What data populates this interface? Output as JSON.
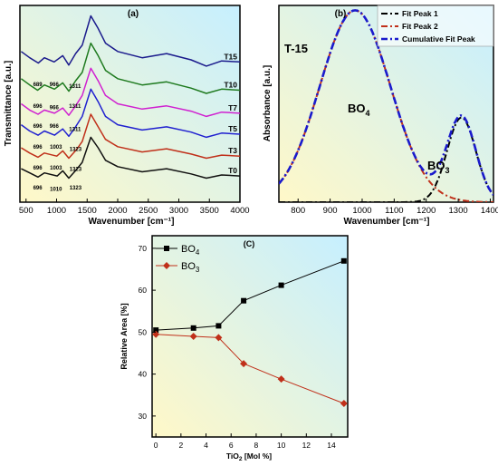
{
  "panels": {
    "a": {
      "label": "(a)"
    },
    "b": {
      "label": "(b)",
      "sample": "T-15",
      "bo4_main": "BO",
      "bo4_sub": "4",
      "bo3_main": "BO",
      "bo3_sub": "3"
    },
    "c": {
      "label": "(C)"
    }
  },
  "chart_data": [
    {
      "type": "line",
      "panel": "a",
      "xlabel": "Wavenumber [cm⁻¹]",
      "ylabel": "Transmittance [a.u.]",
      "xlim": [
        400,
        4000
      ],
      "xticks": [
        500,
        1000,
        1500,
        2000,
        2500,
        3000,
        3500,
        4000
      ],
      "y_tick_labels": false,
      "background": [
        "#fff8c8",
        "#c6efff"
      ],
      "series": [
        {
          "name": "T15",
          "color": "#1a1a8c",
          "offset": 6.3,
          "x": [
            420,
            560,
            700,
            800,
            960,
            1100,
            1200,
            1311,
            1420,
            1560,
            1680,
            1800,
            2000,
            2400,
            2800,
            3200,
            3450,
            3700,
            4000
          ],
          "y": [
            0.9,
            0.6,
            0.35,
            0.6,
            0.4,
            0.7,
            0.25,
            0.8,
            1.2,
            2.6,
            2.0,
            1.3,
            0.9,
            0.6,
            0.8,
            0.5,
            0.2,
            0.45,
            0.4
          ]
        },
        {
          "name": "T10",
          "color": "#1e7a1e",
          "offset": 5.0,
          "x": [
            420,
            560,
            689,
            800,
            966,
            1100,
            1200,
            1311,
            1420,
            1560,
            1680,
            1800,
            2000,
            2400,
            2800,
            3200,
            3450,
            3700,
            4000
          ],
          "y": [
            0.9,
            0.6,
            0.35,
            0.6,
            0.4,
            0.7,
            0.3,
            0.8,
            1.2,
            2.6,
            2.0,
            1.3,
            0.9,
            0.6,
            0.75,
            0.45,
            0.2,
            0.4,
            0.35
          ]
        },
        {
          "name": "T7",
          "color": "#d020d0",
          "offset": 3.9,
          "x": [
            420,
            560,
            696,
            800,
            966,
            1100,
            1200,
            1311,
            1420,
            1560,
            1680,
            1800,
            2000,
            2400,
            2800,
            3200,
            3450,
            3700,
            4000
          ],
          "y": [
            0.8,
            0.5,
            0.3,
            0.5,
            0.35,
            0.6,
            0.25,
            0.7,
            1.2,
            2.5,
            1.9,
            1.2,
            0.8,
            0.55,
            0.7,
            0.45,
            0.2,
            0.4,
            0.35
          ]
        },
        {
          "name": "T5",
          "color": "#2020d0",
          "offset": 2.9,
          "x": [
            420,
            560,
            696,
            800,
            966,
            1100,
            1200,
            1311,
            1420,
            1560,
            1680,
            1800,
            2000,
            2400,
            2800,
            3200,
            3450,
            3700,
            4000
          ],
          "y": [
            0.8,
            0.5,
            0.3,
            0.5,
            0.3,
            0.6,
            0.25,
            0.7,
            1.2,
            2.5,
            1.9,
            1.2,
            0.8,
            0.55,
            0.7,
            0.45,
            0.2,
            0.4,
            0.35
          ]
        },
        {
          "name": "T3",
          "color": "#c0301a",
          "offset": 1.9,
          "x": [
            420,
            560,
            696,
            800,
            1003,
            1100,
            1200,
            1323,
            1420,
            1560,
            1680,
            1800,
            2000,
            2400,
            2800,
            3200,
            3450,
            3700,
            4000
          ],
          "y": [
            0.7,
            0.45,
            0.25,
            0.45,
            0.3,
            0.55,
            0.2,
            0.6,
            1.0,
            2.3,
            1.7,
            1.1,
            0.75,
            0.5,
            0.65,
            0.4,
            0.2,
            0.35,
            0.3
          ]
        },
        {
          "name": "T0",
          "color": "#101010",
          "offset": 1.0,
          "x": [
            420,
            560,
            696,
            800,
            1010,
            1100,
            1200,
            1323,
            1420,
            1560,
            1680,
            1800,
            2000,
            2400,
            2800,
            3200,
            3450,
            3700,
            4000
          ],
          "y": [
            0.6,
            0.4,
            0.2,
            0.4,
            0.25,
            0.5,
            0.15,
            0.55,
            0.9,
            2.1,
            1.6,
            1.0,
            0.7,
            0.45,
            0.6,
            0.35,
            0.15,
            0.3,
            0.25
          ]
        }
      ],
      "annotations": [
        {
          "text": "689",
          "x": 690,
          "y": 5.55
        },
        {
          "text": "966",
          "x": 960,
          "y": 5.55
        },
        {
          "text": "1311",
          "x": 1300,
          "y": 5.45
        },
        {
          "text": "696",
          "x": 690,
          "y": 4.5
        },
        {
          "text": "966",
          "x": 960,
          "y": 4.45
        },
        {
          "text": "1311",
          "x": 1300,
          "y": 4.5
        },
        {
          "text": "696",
          "x": 690,
          "y": 3.55
        },
        {
          "text": "966",
          "x": 960,
          "y": 3.55
        },
        {
          "text": "1311",
          "x": 1300,
          "y": 3.4
        },
        {
          "text": "696",
          "x": 690,
          "y": 2.55
        },
        {
          "text": "1003",
          "x": 990,
          "y": 2.55
        },
        {
          "text": "1323",
          "x": 1310,
          "y": 2.45
        },
        {
          "text": "696",
          "x": 690,
          "y": 1.55
        },
        {
          "text": "1003",
          "x": 990,
          "y": 1.55
        },
        {
          "text": "1323",
          "x": 1310,
          "y": 1.5
        },
        {
          "text": "696",
          "x": 690,
          "y": 0.6
        },
        {
          "text": "1010",
          "x": 990,
          "y": 0.55
        },
        {
          "text": "1323",
          "x": 1310,
          "y": 0.6
        }
      ],
      "ylim": [
        0,
        9.4
      ]
    },
    {
      "type": "line",
      "panel": "b",
      "xlabel": "Wavenumber [cm⁻¹]",
      "ylabel": "Absorbance [a.u.]",
      "xlim": [
        740,
        1410
      ],
      "ylim": [
        0,
        1.0
      ],
      "xticks": [
        800,
        900,
        1000,
        1100,
        1200,
        1300,
        1400
      ],
      "y_tick_labels": false,
      "background": [
        "#fff8c8",
        "#c6efff"
      ],
      "legend": "top-right",
      "series": [
        {
          "name": "Fit Peak 1",
          "color": "#000000",
          "dash": "dash-dot",
          "peak": {
            "center": 1310,
            "height": 0.43,
            "sigma": 45
          }
        },
        {
          "name": "Fit Peak 2",
          "color": "#c0301a",
          "dash": "dash-dot",
          "peak": {
            "center": 978,
            "height": 0.975,
            "sigma": 110
          }
        },
        {
          "name": "Cumulative Fit Peak",
          "color": "#1a1acc",
          "dash": "dash-dot-thick",
          "sum_of": [
            "Fit Peak 1",
            "Fit Peak 2"
          ]
        }
      ]
    },
    {
      "type": "line",
      "panel": "c",
      "xlabel": "TiO₂ [Mol %]",
      "ylabel": "Relative Area [%]",
      "xlim": [
        -0.3,
        15.3
      ],
      "ylim": [
        25,
        73
      ],
      "xticks": [
        0,
        2,
        4,
        6,
        8,
        10,
        12,
        14
      ],
      "yticks": [
        30,
        40,
        50,
        60,
        70
      ],
      "background": [
        "#fff8c8",
        "#c6efff"
      ],
      "legend": "top-left",
      "series": [
        {
          "name": "BO4",
          "color": "#000000",
          "marker": "square",
          "x": [
            0,
            3,
            5,
            7,
            10,
            15
          ],
          "y": [
            50.5,
            51,
            51.5,
            57.5,
            61.2,
            67
          ]
        },
        {
          "name": "BO3",
          "color": "#c0301a",
          "marker": "diamond",
          "x": [
            0,
            3,
            5,
            7,
            10,
            15
          ],
          "y": [
            49.5,
            49,
            48.7,
            42.5,
            38.8,
            33
          ]
        }
      ]
    }
  ]
}
